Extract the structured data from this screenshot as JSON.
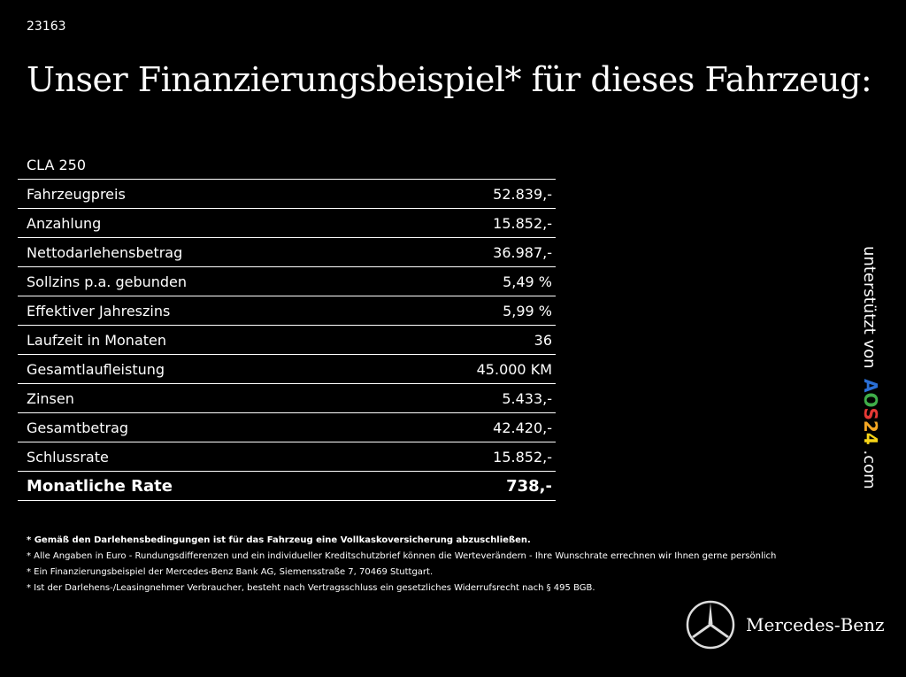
{
  "ref_id": "23163",
  "title": "Unser Finanzierungsbeispiel* für dieses Fahrzeug:",
  "table": {
    "model": "CLA 250",
    "rows": [
      {
        "label": "Fahrzeugpreis",
        "value": "52.839,-"
      },
      {
        "label": "Anzahlung",
        "value": "15.852,-"
      },
      {
        "label": "Nettodarlehensbetrag",
        "value": "36.987,-"
      },
      {
        "label": "Sollzins p.a. gebunden",
        "value": "5,49 %"
      },
      {
        "label": "Effektiver Jahreszins",
        "value": "5,99 %"
      },
      {
        "label": "Laufzeit in Monaten",
        "value": "36"
      },
      {
        "label": "Gesamtlaufleistung",
        "value": "45.000 KM"
      },
      {
        "label": "Zinsen",
        "value": "5.433,-"
      },
      {
        "label": "Gesamtbetrag",
        "value": "42.420,-"
      },
      {
        "label": "Schlussrate",
        "value": "15.852,-"
      }
    ],
    "total": {
      "label": "Monatliche Rate",
      "value": "738,-"
    }
  },
  "notes": [
    "* Gemäß den Darlehensbedingungen ist für das Fahrzeug eine Vollkaskoversicherung abzuschließen.",
    "* Alle Angaben in Euro - Rundungsdifferenzen und ein individueller Kreditschutzbrief können die Werteverändern - Ihre Wunschrate errechnen wir Ihnen gerne persönlich",
    "* Ein Finanzierungsbeispiel der Mercedes-Benz Bank AG, Siemensstraße 7, 70469 Stuttgart.",
    "* Ist der Darlehens-/Leasingnehmer Verbraucher, besteht nach Vertragsschluss ein gesetzliches Widerrufsrecht nach § 495 BGB."
  ],
  "sponsor": {
    "prefix": "unterstützt von",
    "logo_letters": [
      "A",
      "O",
      "S",
      "2",
      "4"
    ],
    "logo_colors": [
      "#2a6fd6",
      "#3fae49",
      "#e53935",
      "#f4a623",
      "#f7d417"
    ],
    "suffix": ".com"
  },
  "brand": {
    "name": "Mercedes-Benz",
    "icon": "mercedes-star-icon"
  }
}
